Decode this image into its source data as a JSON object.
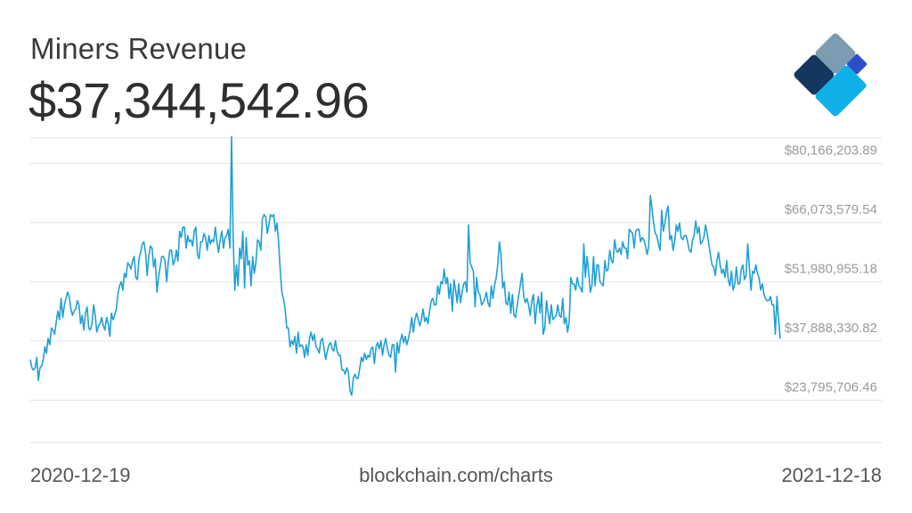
{
  "header": {
    "title": "Miners Revenue",
    "current_value": "$37,344,542.96"
  },
  "footer": {
    "start_date": "2020-12-19",
    "source": "blockchain.com/charts",
    "end_date": "2021-12-18"
  },
  "colors": {
    "line": "#1fa0d6",
    "grid": "#e3e3e3",
    "tick_text": "#9a9a9a",
    "logo_dark_navy": "#13375f",
    "logo_gray_blue": "#7b9cb1",
    "logo_royal_blue": "#2a4fc9",
    "logo_cyan": "#0fb0e8",
    "logo_light_blue": "#aad4ea"
  },
  "icons": [
    "blockchain-logo-icon"
  ],
  "chart_data": {
    "type": "line",
    "title": "Miners Revenue",
    "xlabel": "",
    "ylabel": "",
    "x_start": "2020-12-19",
    "x_end": "2021-12-18",
    "ylim": [
      13700000,
      86200000
    ],
    "yticks": [
      23795706.46,
      37888330.82,
      51980955.18,
      66073579.54,
      80166203.89
    ],
    "ytick_labels": [
      "$23,795,706.46",
      "$37,888,330.82",
      "$51,980,955.18",
      "$66,073,579.54",
      "$80,166,203.89"
    ],
    "grid": true,
    "legend": "none",
    "series": [
      {
        "values": [
          33.5,
          31.5,
          31.0,
          31.5,
          34.0,
          28.5,
          31.5,
          32.0,
          33.5,
          36.5,
          35.0,
          38.5,
          37.0,
          41.0,
          40.5,
          39.5,
          42.5,
          45.0,
          43.0,
          48.0,
          43.5,
          46.5,
          48.0,
          49.5,
          48.5,
          45.5,
          44.0,
          45.0,
          45.5,
          47.5,
          46.5,
          42.0,
          44.0,
          40.5,
          44.5,
          46.0,
          41.0,
          40.5,
          42.0,
          46.5,
          44.0,
          40.0,
          41.5,
          42.0,
          43.5,
          41.5,
          40.5,
          43.5,
          42.0,
          39.0,
          44.5,
          43.0,
          44.0,
          45.5,
          49.0,
          51.0,
          52.0,
          50.0,
          54.0,
          53.0,
          56.5,
          56.0,
          55.0,
          57.0,
          58.0,
          53.0,
          52.5,
          57.5,
          59.0,
          61.0,
          61.5,
          59.0,
          53.5,
          58.0,
          60.5,
          60.0,
          55.5,
          57.5,
          49.5,
          53.0,
          55.5,
          58.0,
          58.0,
          57.0,
          52.0,
          56.5,
          59.5,
          59.5,
          56.0,
          57.0,
          59.5,
          57.0,
          64.0,
          62.5,
          65.0,
          65.0,
          60.0,
          63.0,
          61.5,
          62.0,
          60.5,
          64.0,
          65.0,
          58.5,
          57.5,
          61.5,
          61.5,
          63.5,
          62.5,
          59.5,
          63.0,
          61.0,
          62.0,
          61.5,
          65.0,
          61.5,
          59.0,
          62.0,
          64.0,
          60.0,
          62.5,
          63.0,
          64.5,
          60.0,
          86.5,
          62.5,
          50.0,
          56.0,
          51.0,
          60.0,
          57.5,
          64.0,
          50.5,
          62.5,
          56.0,
          57.0,
          51.0,
          58.0,
          54.0,
          56.5,
          62.0,
          61.5,
          59.5,
          67.0,
          68.0,
          67.5,
          63.5,
          65.5,
          68.0,
          67.5,
          68.0,
          64.0,
          66.0,
          61.5,
          54.5,
          49.5,
          48.0,
          45.5,
          41.0,
          41.0,
          36.5,
          38.0,
          37.0,
          39.0,
          35.0,
          40.0,
          36.5,
          37.0,
          36.5,
          34.0,
          37.0,
          34.5,
          38.5,
          40.0,
          38.0,
          39.5,
          36.5,
          36.0,
          35.0,
          38.0,
          38.5,
          36.0,
          33.5,
          35.5,
          37.0,
          37.5,
          36.0,
          35.5,
          38.0,
          35.5,
          34.5,
          34.5,
          31.0,
          31.0,
          30.0,
          31.5,
          30.5,
          26.0,
          25.0,
          29.0,
          30.0,
          29.0,
          29.0,
          31.5,
          34.0,
          33.0,
          35.0,
          33.5,
          34.5,
          34.0,
          36.0,
          36.5,
          32.5,
          36.5,
          37.5,
          36.0,
          38.0,
          34.5,
          37.0,
          38.5,
          36.0,
          34.5,
          34.0,
          37.0,
          37.0,
          30.5,
          37.5,
          35.0,
          38.0,
          39.5,
          37.5,
          39.0,
          37.0,
          38.5,
          40.5,
          43.5,
          40.0,
          43.0,
          44.5,
          43.0,
          41.5,
          43.0,
          45.5,
          42.5,
          43.5,
          42.0,
          45.0,
          47.5,
          48.0,
          46.5,
          46.5,
          51.0,
          49.0,
          52.0,
          51.5,
          55.0,
          51.5,
          53.0,
          48.0,
          51.5,
          45.0,
          52.5,
          50.0,
          47.0,
          51.5,
          47.0,
          49.5,
          51.5,
          52.0,
          49.5,
          65.5,
          56.5,
          55.5,
          54.5,
          46.0,
          53.0,
          49.5,
          49.0,
          46.5,
          47.0,
          48.0,
          49.5,
          47.0,
          46.0,
          51.0,
          48.0,
          51.0,
          53.0,
          56.0,
          61.5,
          58.5,
          50.5,
          52.0,
          47.0,
          46.5,
          49.5,
          44.5,
          49.0,
          44.0,
          43.5,
          46.5,
          49.0,
          51.5,
          54.0,
          48.5,
          47.0,
          48.0,
          46.5,
          44.0,
          47.5,
          49.0,
          42.0,
          46.0,
          48.5,
          44.5,
          49.5,
          39.5,
          41.0,
          47.5,
          44.5,
          42.0,
          46.5,
          43.0,
          43.5,
          44.0,
          46.5,
          44.0,
          43.5,
          48.0,
          42.0,
          43.5,
          40.0,
          42.5,
          53.0,
          51.5,
          51.5,
          50.0,
          53.0,
          51.0,
          50.5,
          49.5,
          61.0,
          53.0,
          58.0,
          54.5,
          49.5,
          51.0,
          58.0,
          51.0,
          56.0,
          56.0,
          52.0,
          51.5,
          51.0,
          57.0,
          54.5,
          55.0,
          59.5,
          57.0,
          56.5,
          62.0,
          59.5,
          59.0,
          60.0,
          58.5,
          61.5,
          60.0,
          60.0,
          57.5,
          64.5,
          64.0,
          63.5,
          60.0,
          64.0,
          64.5,
          64.5,
          61.5,
          62.5,
          62.0,
          60.5,
          58.5,
          60.5,
          72.5,
          69.5,
          66.0,
          63.5,
          63.0,
          61.0,
          59.5,
          69.0,
          64.0,
          66.0,
          68.5,
          70.0,
          62.0,
          63.0,
          59.5,
          61.5,
          65.5,
          64.0,
          66.0,
          62.5,
          62.0,
          63.0,
          63.0,
          61.5,
          59.5,
          59.0,
          62.0,
          63.0,
          66.5,
          63.5,
          65.0,
          61.0,
          61.5,
          62.5,
          65.5,
          63.5,
          61.0,
          58.5,
          56.0,
          55.5,
          53.5,
          57.0,
          59.0,
          56.0,
          54.0,
          55.0,
          53.0,
          57.0,
          52.5,
          51.0,
          54.5,
          50.0,
          51.5,
          55.5,
          51.5,
          51.5,
          55.0,
          56.0,
          52.5,
          53.5,
          61.0,
          55.5,
          50.0,
          54.5,
          54.0,
          56.0,
          54.0,
          53.0,
          50.0,
          51.5,
          49.0,
          48.0,
          47.5,
          47.5,
          48.5,
          46.5,
          46.5,
          39.5,
          48.5,
          43.0,
          38.5
        ]
      }
    ]
  }
}
